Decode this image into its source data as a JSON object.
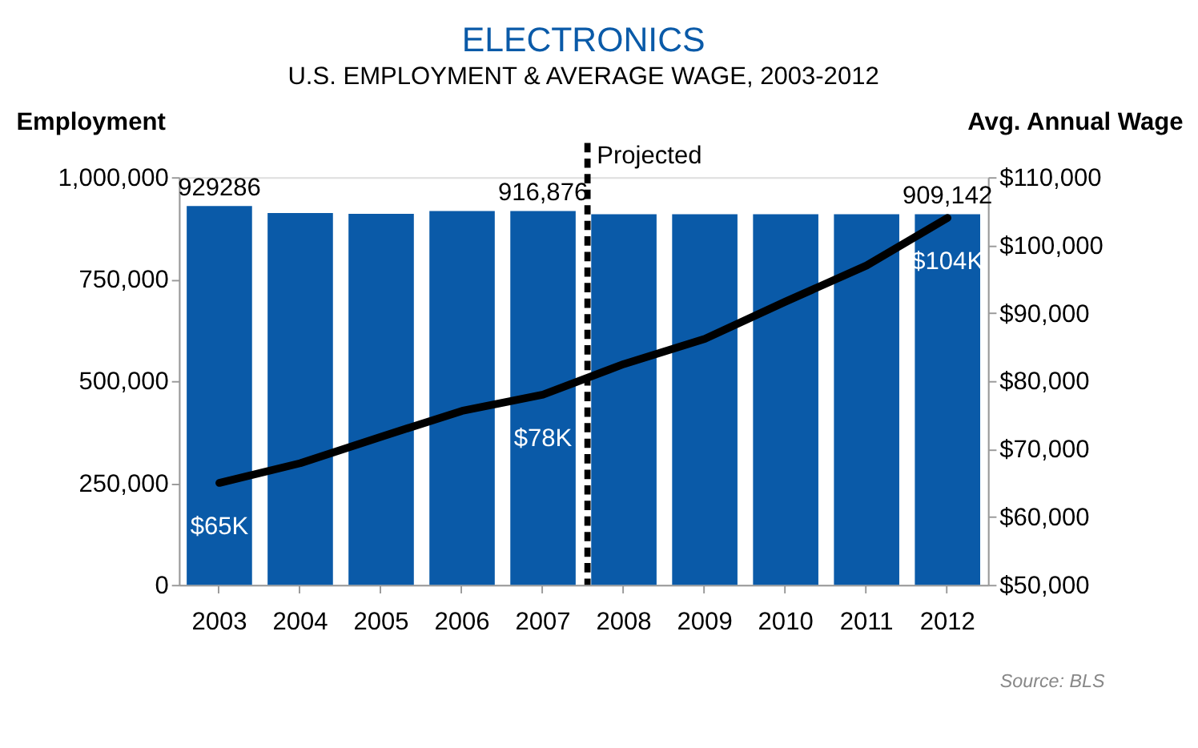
{
  "chart_data": {
    "type": "bar",
    "title": "ELECTRONICS",
    "subtitle": "U.S. EMPLOYMENT & AVERAGE WAGE, 2003-2012",
    "ylabel": "Employment",
    "y2label": "Avg. Annual Wage",
    "categories": [
      "2003",
      "2004",
      "2005",
      "2006",
      "2007",
      "2008",
      "2009",
      "2010",
      "2011",
      "2012"
    ],
    "series": [
      {
        "color": "#0a5aa8",
        "values": [
          929286,
          912000,
          910000,
          917000,
          916876,
          909000,
          909000,
          909000,
          909000,
          909142
        ],
        "value_labels": [
          "929286",
          null,
          null,
          null,
          "916,876",
          null,
          null,
          null,
          null,
          "909,142"
        ]
      },
      {
        "type": "line",
        "axis": "y2",
        "color": "#000000",
        "values": [
          65000,
          67900,
          71800,
          75600,
          78000,
          82500,
          86200,
          91700,
          97000,
          104000
        ],
        "value_labels": [
          "$65K",
          null,
          null,
          null,
          "$78K",
          null,
          null,
          null,
          null,
          "$104K"
        ]
      }
    ],
    "ylim": [
      0,
      1000000
    ],
    "yticks": [
      {
        "value": 0,
        "label": "0"
      },
      {
        "value": 250000,
        "label": "250,000"
      },
      {
        "value": 500000,
        "label": "500,000"
      },
      {
        "value": 750000,
        "label": "750,000"
      },
      {
        "value": 1000000,
        "label": "1,000,000"
      }
    ],
    "y2lim": [
      50000,
      110000
    ],
    "y2ticks": [
      {
        "value": 50000,
        "label": "$50,000"
      },
      {
        "value": 60000,
        "label": "$60,000"
      },
      {
        "value": 70000,
        "label": "$70,000"
      },
      {
        "value": 80000,
        "label": "$80,000"
      },
      {
        "value": 90000,
        "label": "$90,000"
      },
      {
        "value": 100000,
        "label": "$100,000"
      },
      {
        "value": 110000,
        "label": "$110,000"
      }
    ],
    "ref_lines": [
      {
        "axis": "x",
        "value": "2008",
        "label": "Projected",
        "color": "#000000",
        "line_style": "dashed"
      }
    ],
    "annotations": [
      "Source: BLS"
    ],
    "grid": false,
    "line_style": "solid",
    "marker": "none"
  }
}
